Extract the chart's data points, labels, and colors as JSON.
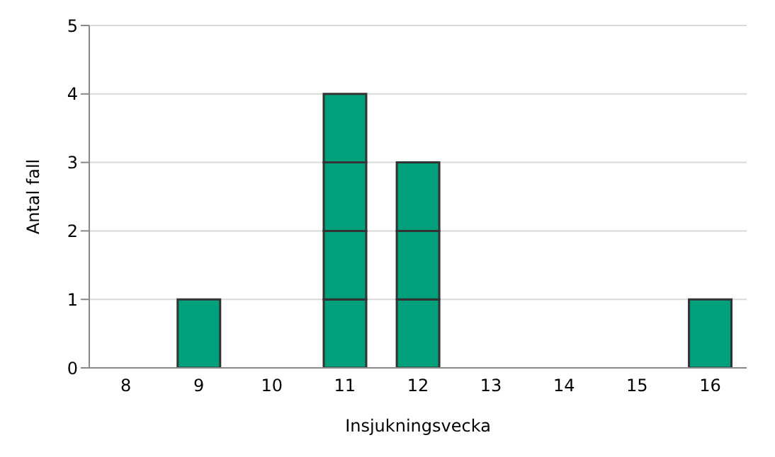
{
  "chart_data": {
    "type": "bar",
    "stacked": true,
    "categories": [
      "8",
      "9",
      "10",
      "11",
      "12",
      "13",
      "14",
      "15",
      "16"
    ],
    "series": [
      {
        "color": "#00a07c",
        "values": [
          null,
          1,
          null,
          1,
          1,
          null,
          null,
          null,
          1
        ]
      },
      {
        "color": "#00a07c",
        "values": [
          null,
          null,
          null,
          1,
          1,
          null,
          null,
          null,
          null
        ]
      },
      {
        "color": "#00a07c",
        "values": [
          null,
          null,
          null,
          1,
          1,
          null,
          null,
          null,
          null
        ]
      },
      {
        "color": "#00a07c",
        "values": [
          null,
          null,
          null,
          1,
          null,
          null,
          null,
          null,
          null
        ]
      }
    ],
    "ylim": [
      0,
      5
    ],
    "yticks": [
      0,
      1,
      2,
      3,
      4,
      5
    ],
    "grid": "y",
    "legend": false,
    "xlabel": "Insjukningsvecka",
    "ylabel": "Antal fall"
  }
}
